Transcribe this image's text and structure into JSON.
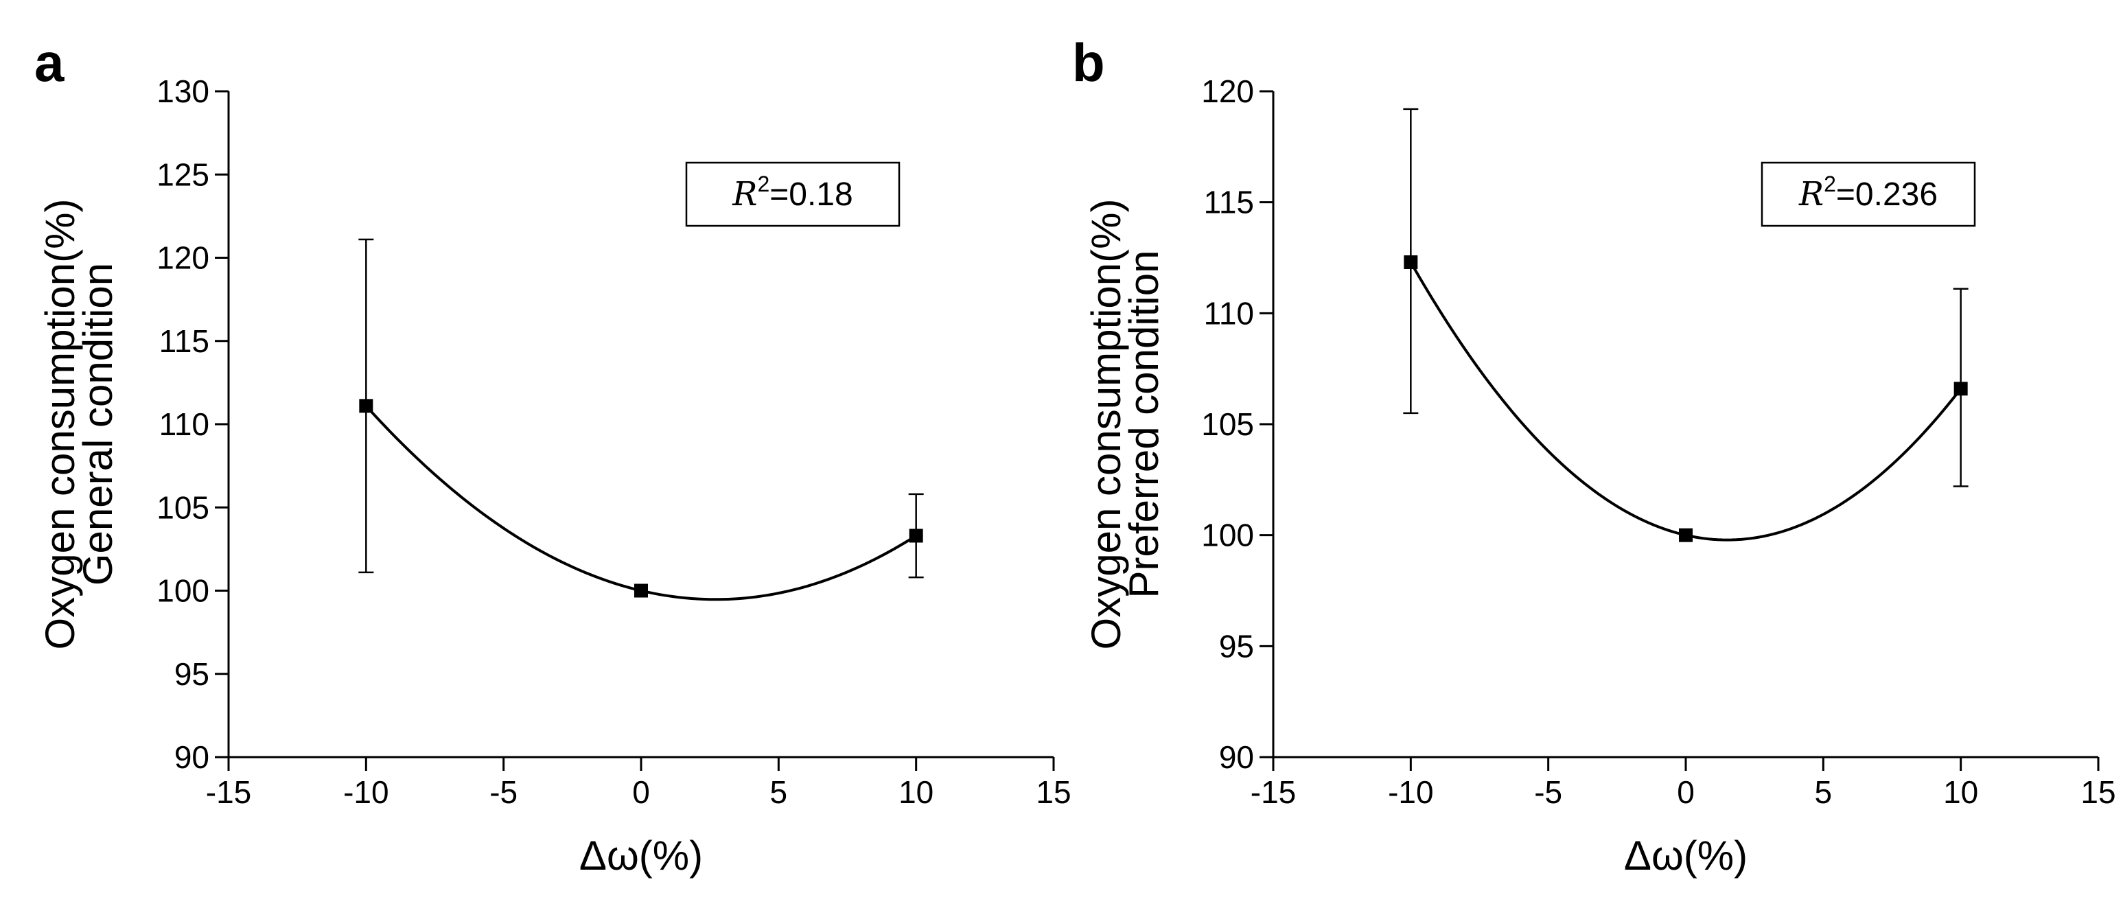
{
  "chart_data": [
    {
      "type": "scatter",
      "panel_label": "a",
      "title": "",
      "xlabel": "Δω(%)",
      "ylabel_line1": "Oxygen consumption(%)",
      "ylabel_line2": "General condition",
      "xlim": [
        -15,
        15
      ],
      "ylim": [
        90,
        130
      ],
      "xticks": [
        -15,
        -10,
        -5,
        0,
        5,
        10,
        15
      ],
      "yticks": [
        90,
        95,
        100,
        105,
        110,
        115,
        120,
        125,
        130
      ],
      "xtick_labels": [
        "-15",
        "-10",
        "-5",
        "0",
        "5",
        "10",
        "15"
      ],
      "ytick_labels": [
        "90",
        "95",
        "100",
        "105",
        "110",
        "115",
        "120",
        "125",
        "130"
      ],
      "x": [
        -10,
        0,
        10
      ],
      "y": [
        111.1,
        100.0,
        103.3
      ],
      "err_upper": [
        121.1,
        100.0,
        105.8
      ],
      "err_lower": [
        101.1,
        100.0,
        100.8
      ],
      "fit": "quadratic",
      "annotation": {
        "var": "R",
        "sup": "2",
        "text": "=0.18"
      }
    },
    {
      "type": "scatter",
      "panel_label": "b",
      "title": "",
      "xlabel": "Δω(%)",
      "ylabel_line1": "Oxygen consumption(%)",
      "ylabel_line2": "Preferred condition",
      "xlim": [
        -15,
        15
      ],
      "ylim": [
        90,
        120
      ],
      "xticks": [
        -15,
        -10,
        -5,
        0,
        5,
        10,
        15
      ],
      "yticks": [
        90,
        95,
        100,
        105,
        110,
        115,
        120
      ],
      "xtick_labels": [
        "-15",
        "-10",
        "-5",
        "0",
        "5",
        "10",
        "15"
      ],
      "ytick_labels": [
        "90",
        "95",
        "100",
        "105",
        "110",
        "115",
        "120"
      ],
      "x": [
        -10,
        0,
        10
      ],
      "y": [
        112.3,
        100.0,
        106.6
      ],
      "err_upper": [
        119.2,
        100.0,
        111.1
      ],
      "err_lower": [
        105.5,
        100.0,
        102.2
      ],
      "fit": "quadratic",
      "annotation": {
        "var": "R",
        "sup": "2",
        "text": "=0.236"
      }
    }
  ]
}
